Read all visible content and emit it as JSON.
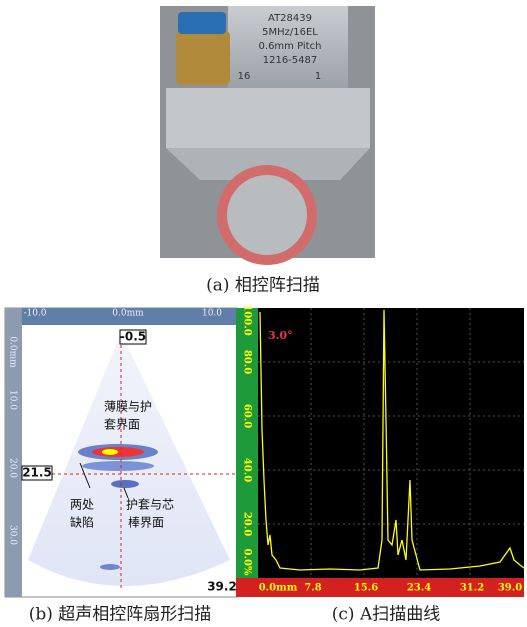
{
  "figure_a": {
    "probe_label": [
      "AT28439",
      "5MHz/16EL",
      "0.6mm Pitch",
      "1216-5487"
    ],
    "element_left": "16",
    "element_right": "1",
    "caption": "(a)  相控阵扫描"
  },
  "figure_b": {
    "top_ticks": [
      "-10.0",
      "0.0mm",
      "10.0"
    ],
    "left_ticks": [
      "0.0mm",
      "10.0",
      "20.0",
      "30.0"
    ],
    "depth_top": "-0.5",
    "cursor_depth": "21.5",
    "depth_bottom": "39.2",
    "annotations": [
      [
        "薄膜与护",
        "套界面"
      ],
      [
        "两处",
        "缺陷"
      ],
      [
        "护套与芯",
        "棒界面"
      ]
    ],
    "caption": "(b)  超声相控阵扇形扫描"
  },
  "figure_c": {
    "angle": "3.0°",
    "y_ticks": [
      "100.0",
      "80.0",
      "60.0",
      "40.0",
      "20.0",
      "0.0%"
    ],
    "x_ticks": [
      "0.0mm",
      "7.8",
      "15.6",
      "23.4",
      "31.2",
      "39.0"
    ],
    "caption": "(c)  A扫描曲线"
  }
}
